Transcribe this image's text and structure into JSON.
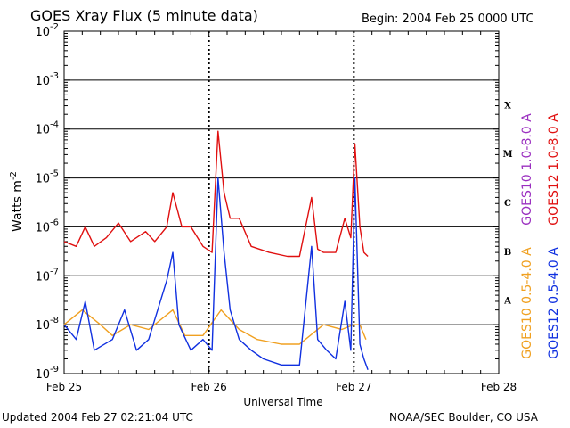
{
  "header": {
    "title": "GOES Xray Flux (5 minute data)",
    "begin": "Begin:  2004 Feb 25 0000 UTC"
  },
  "footer": {
    "updated": "Updated 2004 Feb 27 02:21:04 UTC",
    "source": "NOAA/SEC Boulder, CO USA"
  },
  "colors": {
    "goes10_long": "#9b30c0",
    "goes12_long": "#e01010",
    "goes10_short": "#f0a020",
    "goes12_short": "#1030e0",
    "axis": "#000000",
    "background": "#ffffff"
  },
  "chart_data": {
    "type": "line",
    "title": "GOES Xray Flux (5 minute data)",
    "xlabel": "Universal Time",
    "ylabel": "Watts m-2",
    "y_scale": "log",
    "ylim": [
      1e-09,
      0.01
    ],
    "xlim": [
      "2004-02-25 00:00",
      "2004-02-28 00:00"
    ],
    "x_tick_labels": [
      "Feb 25",
      "Feb 26",
      "Feb 27",
      "Feb 28"
    ],
    "y_tick_labels": [
      {
        "base": "10",
        "exp": "-9"
      },
      {
        "base": "10",
        "exp": "-8"
      },
      {
        "base": "10",
        "exp": "-7"
      },
      {
        "base": "10",
        "exp": "-6"
      },
      {
        "base": "10",
        "exp": "-5"
      },
      {
        "base": "10",
        "exp": "-4"
      },
      {
        "base": "10",
        "exp": "-3"
      },
      {
        "base": "10",
        "exp": "-2"
      }
    ],
    "flare_classes": [
      {
        "label": "A",
        "lower": 1e-08
      },
      {
        "label": "B",
        "lower": 1e-07
      },
      {
        "label": "C",
        "lower": 1e-06
      },
      {
        "label": "M",
        "lower": 1e-05
      },
      {
        "label": "X",
        "lower": 0.0001
      }
    ],
    "grid": "horizontal lines at decades 1e-8 to 1e-3",
    "legend_placement": "right, vertical",
    "series": [
      {
        "name": "GOES10 1.0-8.0 A",
        "key": "goes10_long",
        "points": []
      },
      {
        "name": "GOES12 1.0-8.0 A",
        "key": "goes12_long",
        "points": [
          [
            "2004-02-25 00:00",
            5e-07
          ],
          [
            "2004-02-25 02:00",
            4e-07
          ],
          [
            "2004-02-25 03:30",
            1e-06
          ],
          [
            "2004-02-25 05:00",
            4e-07
          ],
          [
            "2004-02-25 07:00",
            6e-07
          ],
          [
            "2004-02-25 09:00",
            1.2e-06
          ],
          [
            "2004-02-25 11:00",
            5e-07
          ],
          [
            "2004-02-25 13:30",
            8e-07
          ],
          [
            "2004-02-25 15:00",
            5e-07
          ],
          [
            "2004-02-25 17:00",
            1e-06
          ],
          [
            "2004-02-25 18:00",
            5e-06
          ],
          [
            "2004-02-25 19:30",
            1e-06
          ],
          [
            "2004-02-25 21:00",
            1e-06
          ],
          [
            "2004-02-25 23:00",
            4e-07
          ],
          [
            "2004-02-26 00:30",
            3e-07
          ],
          [
            "2004-02-26 01:30",
            9e-05
          ],
          [
            "2004-02-26 02:30",
            5e-06
          ],
          [
            "2004-02-26 03:30",
            1.5e-06
          ],
          [
            "2004-02-26 05:00",
            1.5e-06
          ],
          [
            "2004-02-26 07:00",
            4e-07
          ],
          [
            "2004-02-26 10:00",
            3e-07
          ],
          [
            "2004-02-26 13:00",
            2.5e-07
          ],
          [
            "2004-02-26 15:00",
            2.5e-07
          ],
          [
            "2004-02-26 17:00",
            4e-06
          ],
          [
            "2004-02-26 18:00",
            3.5e-07
          ],
          [
            "2004-02-26 19:00",
            3e-07
          ],
          [
            "2004-02-26 21:00",
            3e-07
          ],
          [
            "2004-02-26 22:30",
            1.5e-06
          ],
          [
            "2004-02-26 23:30",
            6e-07
          ],
          [
            "2004-02-27 00:10",
            5e-05
          ],
          [
            "2004-02-27 01:00",
            1e-06
          ],
          [
            "2004-02-27 01:40",
            3e-07
          ],
          [
            "2004-02-27 02:20",
            2.5e-07
          ]
        ]
      },
      {
        "name": "GOES10 0.5-4.0 A",
        "key": "goes10_short",
        "points": [
          [
            "2004-02-25 00:00",
            1e-08
          ],
          [
            "2004-02-25 03:00",
            2e-08
          ],
          [
            "2004-02-25 06:00",
            1e-08
          ],
          [
            "2004-02-25 08:00",
            6e-09
          ],
          [
            "2004-02-25 11:00",
            1e-08
          ],
          [
            "2004-02-25 14:00",
            8e-09
          ],
          [
            "2004-02-25 18:00",
            2e-08
          ],
          [
            "2004-02-25 20:00",
            6e-09
          ],
          [
            "2004-02-25 23:00",
            6e-09
          ],
          [
            "2004-02-26 02:00",
            2e-08
          ],
          [
            "2004-02-26 05:00",
            8e-09
          ],
          [
            "2004-02-26 08:00",
            5e-09
          ],
          [
            "2004-02-26 12:00",
            4e-09
          ],
          [
            "2004-02-26 15:00",
            4e-09
          ],
          [
            "2004-02-26 19:00",
            1e-08
          ],
          [
            "2004-02-26 22:00",
            8e-09
          ],
          [
            "2004-02-27 00:00",
            1e-08
          ],
          [
            "2004-02-27 01:00",
            1e-08
          ],
          [
            "2004-02-27 02:00",
            5e-09
          ]
        ]
      },
      {
        "name": "GOES12 0.5-4.0 A",
        "key": "goes12_short",
        "points": [
          [
            "2004-02-25 00:00",
            1e-08
          ],
          [
            "2004-02-25 02:00",
            5e-09
          ],
          [
            "2004-02-25 03:30",
            3e-08
          ],
          [
            "2004-02-25 05:00",
            3e-09
          ],
          [
            "2004-02-25 08:00",
            5e-09
          ],
          [
            "2004-02-25 10:00",
            2e-08
          ],
          [
            "2004-02-25 12:00",
            3e-09
          ],
          [
            "2004-02-25 14:00",
            5e-09
          ],
          [
            "2004-02-25 17:00",
            8e-08
          ],
          [
            "2004-02-25 18:00",
            3e-07
          ],
          [
            "2004-02-25 19:00",
            1e-08
          ],
          [
            "2004-02-25 21:00",
            3e-09
          ],
          [
            "2004-02-25 23:00",
            5e-09
          ],
          [
            "2004-02-26 00:30",
            3e-09
          ],
          [
            "2004-02-26 01:30",
            1e-05
          ],
          [
            "2004-02-26 02:30",
            3e-07
          ],
          [
            "2004-02-26 03:30",
            2e-08
          ],
          [
            "2004-02-26 05:00",
            5e-09
          ],
          [
            "2004-02-26 07:00",
            3e-09
          ],
          [
            "2004-02-26 09:00",
            2e-09
          ],
          [
            "2004-02-26 12:00",
            1.5e-09
          ],
          [
            "2004-02-26 15:00",
            1.5e-09
          ],
          [
            "2004-02-26 17:00",
            4e-07
          ],
          [
            "2004-02-26 18:00",
            5e-09
          ],
          [
            "2004-02-26 19:30",
            3e-09
          ],
          [
            "2004-02-26 21:00",
            2e-09
          ],
          [
            "2004-02-26 22:30",
            3e-08
          ],
          [
            "2004-02-26 23:30",
            3e-09
          ],
          [
            "2004-02-27 00:10",
            1e-05
          ],
          [
            "2004-02-27 01:00",
            4e-09
          ],
          [
            "2004-02-27 01:40",
            2e-09
          ],
          [
            "2004-02-27 02:20",
            1.2e-09
          ]
        ]
      }
    ]
  }
}
